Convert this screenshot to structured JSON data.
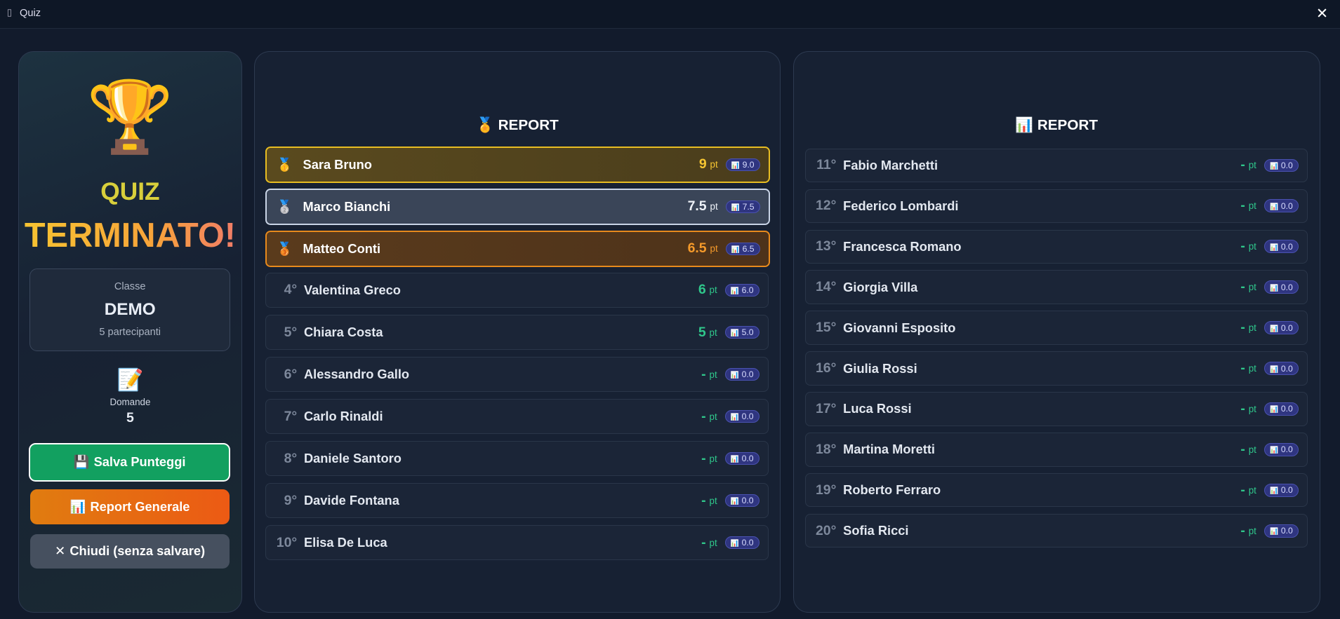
{
  "window": {
    "title": "Quiz",
    "close": "✕"
  },
  "icons": {
    "window": "▯",
    "trophy": "🏆",
    "memo": "📝",
    "chart": "📊",
    "medal": "🏅",
    "medals": [
      "🥇",
      "🥈",
      "🥉"
    ],
    "save": "💾",
    "close": "✕"
  },
  "unit": "pt",
  "summary": {
    "title_line1": "QUIZ",
    "title_line2": "TERMINATO!",
    "class_label": "Classe",
    "class_name": "DEMO",
    "participants": "5 partecipanti",
    "questions_label": "Domande",
    "questions_count": "5"
  },
  "buttons": {
    "save": "Salva Punteggi",
    "report": "Report Generale",
    "close": "Chiudi (senza salvare)"
  },
  "left_panel": {
    "title": "REPORT",
    "rows": [
      {
        "rank": null,
        "name": "Sara Bruno",
        "score": "9",
        "badge": "9.0"
      },
      {
        "rank": null,
        "name": "Marco Bianchi",
        "score": "7.5",
        "badge": "7.5"
      },
      {
        "rank": null,
        "name": "Matteo Conti",
        "score": "6.5",
        "badge": "6.5"
      },
      {
        "rank": "4°",
        "name": "Valentina Greco",
        "score": "6",
        "badge": "6.0"
      },
      {
        "rank": "5°",
        "name": "Chiara Costa",
        "score": "5",
        "badge": "5.0"
      },
      {
        "rank": "6°",
        "name": "Alessandro Gallo",
        "score": "-",
        "badge": "0.0"
      },
      {
        "rank": "7°",
        "name": "Carlo Rinaldi",
        "score": "-",
        "badge": "0.0"
      },
      {
        "rank": "8°",
        "name": "Daniele Santoro",
        "score": "-",
        "badge": "0.0"
      },
      {
        "rank": "9°",
        "name": "Davide Fontana",
        "score": "-",
        "badge": "0.0"
      },
      {
        "rank": "10°",
        "name": "Elisa De Luca",
        "score": "-",
        "badge": "0.0"
      }
    ]
  },
  "right_panel": {
    "title": "REPORT",
    "rows": [
      {
        "rank": "11°",
        "name": "Fabio Marchetti",
        "score": "-",
        "badge": "0.0"
      },
      {
        "rank": "12°",
        "name": "Federico Lombardi",
        "score": "-",
        "badge": "0.0"
      },
      {
        "rank": "13°",
        "name": "Francesca Romano",
        "score": "-",
        "badge": "0.0"
      },
      {
        "rank": "14°",
        "name": "Giorgia Villa",
        "score": "-",
        "badge": "0.0"
      },
      {
        "rank": "15°",
        "name": "Giovanni Esposito",
        "score": "-",
        "badge": "0.0"
      },
      {
        "rank": "16°",
        "name": "Giulia Rossi",
        "score": "-",
        "badge": "0.0"
      },
      {
        "rank": "17°",
        "name": "Luca Rossi",
        "score": "-",
        "badge": "0.0"
      },
      {
        "rank": "18°",
        "name": "Martina Moretti",
        "score": "-",
        "badge": "0.0"
      },
      {
        "rank": "19°",
        "name": "Roberto Ferraro",
        "score": "-",
        "badge": "0.0"
      },
      {
        "rank": "20°",
        "name": "Sofia Ricci",
        "score": "-",
        "badge": "0.0"
      }
    ]
  }
}
